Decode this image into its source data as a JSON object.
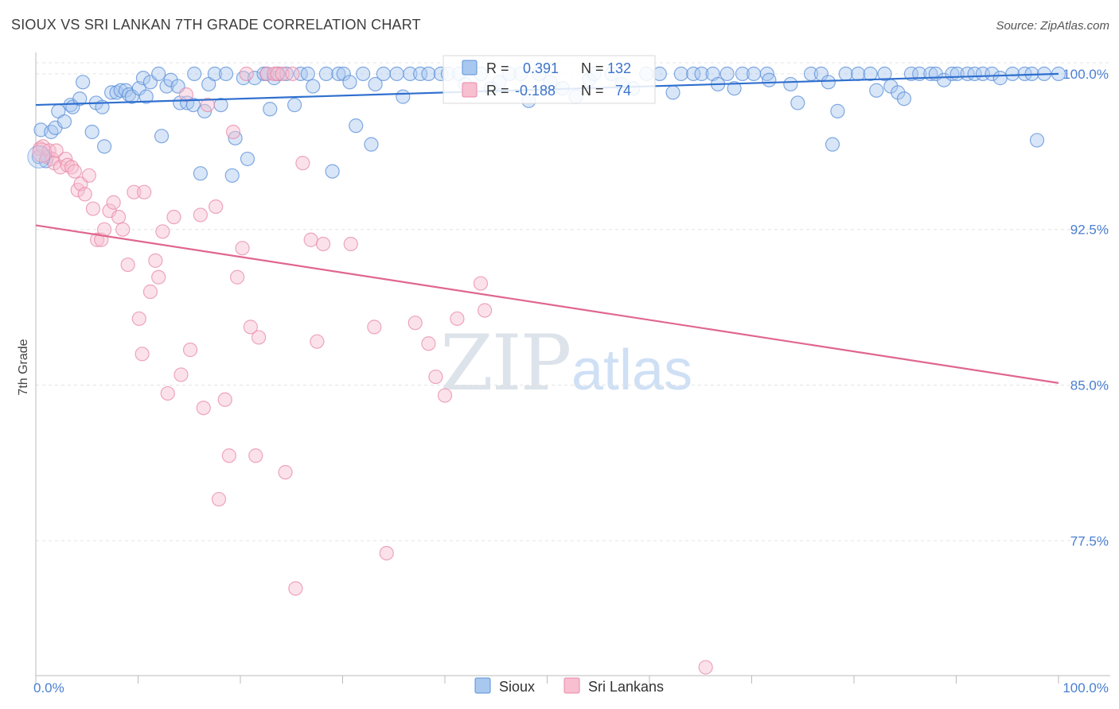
{
  "header": {
    "title": "SIOUX VS SRI LANKAN 7TH GRADE CORRELATION CHART",
    "source": "Source: ZipAtlas.com"
  },
  "watermark": {
    "zip": "ZIP",
    "atlas": "atlas"
  },
  "colors": {
    "sioux_fill": "#a9c8ef",
    "sioux_stroke": "#5b8fd8",
    "sioux_line": "#2f6fce",
    "srilankan_fill": "#f7bfd0",
    "srilankan_stroke": "#e88aa8",
    "srilankan_line": "#e0668f",
    "tick_label": "#4a7fd0",
    "grid": "#e3e3e3"
  },
  "legend": {
    "rows": [
      {
        "r_label": "R =",
        "r_value": "0.391",
        "n_label": "N =",
        "n_value": "132"
      },
      {
        "r_label": "R =",
        "r_value": "-0.188",
        "n_label": "N =",
        "n_value": "74"
      }
    ]
  },
  "chart_data": {
    "type": "scatter",
    "ylabel": "7th Grade",
    "xlim": [
      0,
      100
    ],
    "ylim": [
      71.0,
      100.8
    ],
    "y_ticks": [
      {
        "value": 100.0,
        "label": "100.0%"
      },
      {
        "value": 92.5,
        "label": "92.5%"
      },
      {
        "value": 85.0,
        "label": "85.0%"
      },
      {
        "value": 77.5,
        "label": "77.5%"
      }
    ],
    "x_ticks": [
      {
        "value": 0,
        "label": "0.0%"
      },
      {
        "value": 100,
        "label": "100.0%"
      }
    ],
    "x_minor_ticks": [
      0,
      10,
      20,
      30,
      40,
      50,
      60,
      70,
      80,
      90,
      100
    ],
    "grid": true,
    "legend_position": "top-center",
    "series": [
      {
        "name": "Sioux",
        "trend": {
          "x": [
            0,
            100
          ],
          "y": [
            98.5,
            100.0
          ]
        },
        "points": [
          [
            0.3,
            96.0
          ],
          [
            0.5,
            97.3
          ],
          [
            1.0,
            95.8
          ],
          [
            1.5,
            97.2
          ],
          [
            1.9,
            97.4
          ],
          [
            2.2,
            98.2
          ],
          [
            2.8,
            97.7
          ],
          [
            3.4,
            98.5
          ],
          [
            3.6,
            98.4
          ],
          [
            4.3,
            98.8
          ],
          [
            4.6,
            99.6
          ],
          [
            5.5,
            97.2
          ],
          [
            5.9,
            98.6
          ],
          [
            6.5,
            98.4
          ],
          [
            6.7,
            96.5
          ],
          [
            7.4,
            99.1
          ],
          [
            7.9,
            99.1
          ],
          [
            8.3,
            99.2
          ],
          [
            8.8,
            99.2
          ],
          [
            9.1,
            99.0
          ],
          [
            9.4,
            98.9
          ],
          [
            10.1,
            99.3
          ],
          [
            10.5,
            99.8
          ],
          [
            10.8,
            98.9
          ],
          [
            11.2,
            99.6
          ],
          [
            12.0,
            100.0
          ],
          [
            12.3,
            97.0
          ],
          [
            12.8,
            99.4
          ],
          [
            13.2,
            99.7
          ],
          [
            13.9,
            99.4
          ],
          [
            14.1,
            98.6
          ],
          [
            14.8,
            98.6
          ],
          [
            15.4,
            98.5
          ],
          [
            15.5,
            100.0
          ],
          [
            16.1,
            95.2
          ],
          [
            16.5,
            98.2
          ],
          [
            16.9,
            99.5
          ],
          [
            17.5,
            100.0
          ],
          [
            18.1,
            98.5
          ],
          [
            18.6,
            100.0
          ],
          [
            19.2,
            95.1
          ],
          [
            19.5,
            96.9
          ],
          [
            20.3,
            99.8
          ],
          [
            20.7,
            95.9
          ],
          [
            21.4,
            99.8
          ],
          [
            22.3,
            100.0
          ],
          [
            22.6,
            100.0
          ],
          [
            22.9,
            98.3
          ],
          [
            23.3,
            99.8
          ],
          [
            23.7,
            100.0
          ],
          [
            24.5,
            100.0
          ],
          [
            25.3,
            98.5
          ],
          [
            25.9,
            100.0
          ],
          [
            26.6,
            100.0
          ],
          [
            27.1,
            99.4
          ],
          [
            28.4,
            100.0
          ],
          [
            29.0,
            95.3
          ],
          [
            29.6,
            100.0
          ],
          [
            30.1,
            100.0
          ],
          [
            30.7,
            99.6
          ],
          [
            31.3,
            97.5
          ],
          [
            32.0,
            100.0
          ],
          [
            32.8,
            96.6
          ],
          [
            33.2,
            99.5
          ],
          [
            34.0,
            100.0
          ],
          [
            35.3,
            100.0
          ],
          [
            35.9,
            98.9
          ],
          [
            36.6,
            100.0
          ],
          [
            37.6,
            100.0
          ],
          [
            38.4,
            100.0
          ],
          [
            39.6,
            100.0
          ],
          [
            40.3,
            100.0
          ],
          [
            41.4,
            100.0
          ],
          [
            42.0,
            99.5
          ],
          [
            43.5,
            100.0
          ],
          [
            44.5,
            99.3
          ],
          [
            45.3,
            99.6
          ],
          [
            46.3,
            100.0
          ],
          [
            47.4,
            100.0
          ],
          [
            48.2,
            98.7
          ],
          [
            49.2,
            100.0
          ],
          [
            50.3,
            99.6
          ],
          [
            51.5,
            99.3
          ],
          [
            52.8,
            98.9
          ],
          [
            54.1,
            99.7
          ],
          [
            54.6,
            100.0
          ],
          [
            56.3,
            100.0
          ],
          [
            57.3,
            99.5
          ],
          [
            58.4,
            99.3
          ],
          [
            59.7,
            100.0
          ],
          [
            61.0,
            100.0
          ],
          [
            62.3,
            99.1
          ],
          [
            63.1,
            100.0
          ],
          [
            64.3,
            100.0
          ],
          [
            65.1,
            100.0
          ],
          [
            66.2,
            100.0
          ],
          [
            66.7,
            99.5
          ],
          [
            67.6,
            100.0
          ],
          [
            68.3,
            99.3
          ],
          [
            69.1,
            100.0
          ],
          [
            70.2,
            100.0
          ],
          [
            71.5,
            100.0
          ],
          [
            71.7,
            99.7
          ],
          [
            73.8,
            99.5
          ],
          [
            74.5,
            98.6
          ],
          [
            75.8,
            100.0
          ],
          [
            76.8,
            100.0
          ],
          [
            77.5,
            99.6
          ],
          [
            77.9,
            96.6
          ],
          [
            78.4,
            98.2
          ],
          [
            79.2,
            100.0
          ],
          [
            80.4,
            100.0
          ],
          [
            81.6,
            100.0
          ],
          [
            82.2,
            99.2
          ],
          [
            83.0,
            100.0
          ],
          [
            83.6,
            99.4
          ],
          [
            84.3,
            99.1
          ],
          [
            84.9,
            98.8
          ],
          [
            85.6,
            100.0
          ],
          [
            86.4,
            100.0
          ],
          [
            87.5,
            100.0
          ],
          [
            88.0,
            100.0
          ],
          [
            88.8,
            99.7
          ],
          [
            89.6,
            100.0
          ],
          [
            90.1,
            100.0
          ],
          [
            91.1,
            100.0
          ],
          [
            91.8,
            100.0
          ],
          [
            92.6,
            100.0
          ],
          [
            93.5,
            100.0
          ],
          [
            94.3,
            99.8
          ],
          [
            95.5,
            100.0
          ],
          [
            96.7,
            100.0
          ],
          [
            97.4,
            100.0
          ],
          [
            97.9,
            96.8
          ],
          [
            98.6,
            100.0
          ],
          [
            100.0,
            100.0
          ]
        ]
      },
      {
        "name": "Sri Lankans",
        "trend": {
          "x": [
            0,
            100
          ],
          "y": [
            92.7,
            85.1
          ]
        },
        "points": [
          [
            0.4,
            96.4
          ],
          [
            0.7,
            96.5
          ],
          [
            1.1,
            96.0
          ],
          [
            1.3,
            96.3
          ],
          [
            1.6,
            95.9
          ],
          [
            1.8,
            95.7
          ],
          [
            2.0,
            96.3
          ],
          [
            2.4,
            95.5
          ],
          [
            2.9,
            95.9
          ],
          [
            3.1,
            95.6
          ],
          [
            3.5,
            95.5
          ],
          [
            3.8,
            95.3
          ],
          [
            4.1,
            94.4
          ],
          [
            4.4,
            94.7
          ],
          [
            4.8,
            94.2
          ],
          [
            5.2,
            95.1
          ],
          [
            5.6,
            93.5
          ],
          [
            6.0,
            92.0
          ],
          [
            6.4,
            92.0
          ],
          [
            6.7,
            92.5
          ],
          [
            7.2,
            93.4
          ],
          [
            7.6,
            93.8
          ],
          [
            8.1,
            93.1
          ],
          [
            8.5,
            92.5
          ],
          [
            9.0,
            90.8
          ],
          [
            9.6,
            94.3
          ],
          [
            10.1,
            88.2
          ],
          [
            10.4,
            86.5
          ],
          [
            10.6,
            94.3
          ],
          [
            11.2,
            89.5
          ],
          [
            11.7,
            91.0
          ],
          [
            12.0,
            90.2
          ],
          [
            12.4,
            92.4
          ],
          [
            12.9,
            84.6
          ],
          [
            13.5,
            93.1
          ],
          [
            14.2,
            85.5
          ],
          [
            14.7,
            99.0
          ],
          [
            15.1,
            86.7
          ],
          [
            16.1,
            93.2
          ],
          [
            16.4,
            83.9
          ],
          [
            16.8,
            98.5
          ],
          [
            17.6,
            93.6
          ],
          [
            17.9,
            79.5
          ],
          [
            18.5,
            84.3
          ],
          [
            18.9,
            81.6
          ],
          [
            19.3,
            97.2
          ],
          [
            19.7,
            90.2
          ],
          [
            20.2,
            91.6
          ],
          [
            20.6,
            100.0
          ],
          [
            21.0,
            87.8
          ],
          [
            21.5,
            81.6
          ],
          [
            21.8,
            87.3
          ],
          [
            22.6,
            100.0
          ],
          [
            23.3,
            100.0
          ],
          [
            23.6,
            100.0
          ],
          [
            24.1,
            100.0
          ],
          [
            24.4,
            80.8
          ],
          [
            25.1,
            100.0
          ],
          [
            25.4,
            75.2
          ],
          [
            26.1,
            95.7
          ],
          [
            26.9,
            92.0
          ],
          [
            27.5,
            87.1
          ],
          [
            28.1,
            91.8
          ],
          [
            30.8,
            91.8
          ],
          [
            33.1,
            87.8
          ],
          [
            34.3,
            76.9
          ],
          [
            37.1,
            88.0
          ],
          [
            38.4,
            87.0
          ],
          [
            39.1,
            85.4
          ],
          [
            40.0,
            84.5
          ],
          [
            41.2,
            88.2
          ],
          [
            43.5,
            89.9
          ],
          [
            43.9,
            88.6
          ],
          [
            65.5,
            71.4
          ]
        ]
      }
    ]
  }
}
